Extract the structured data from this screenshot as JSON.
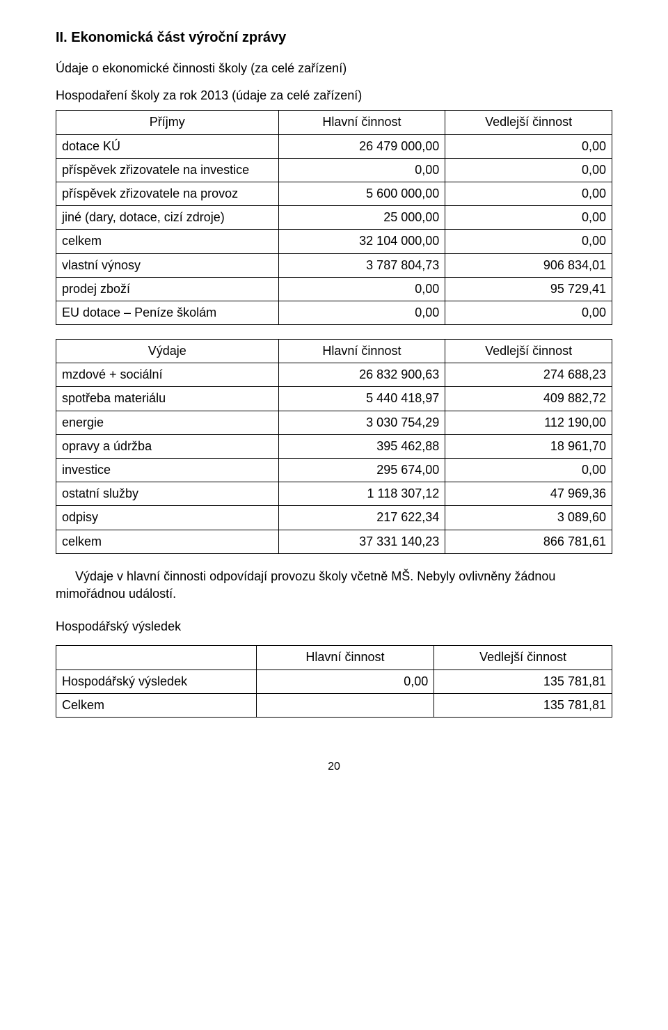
{
  "heading": "II. Ekonomická část výroční zprávy",
  "subtitle": "Údaje o ekonomické činnosti školy (za celé zařízení)",
  "section_label": "Hospodaření školy za rok 2013 (údaje za celé zařízení)",
  "income_table": {
    "type": "table",
    "columns": [
      "Příjmy",
      "Hlavní činnost",
      "Vedlejší činnost"
    ],
    "rows": [
      {
        "label": "dotace KÚ",
        "c1": "26 479 000,00",
        "c2": "0,00"
      },
      {
        "label": "příspěvek zřizovatele na investice",
        "c1": "0,00",
        "c2": "0,00"
      },
      {
        "label": "příspěvek zřizovatele na provoz",
        "c1": "5 600 000,00",
        "c2": "0,00"
      },
      {
        "label": "jiné (dary, dotace, cizí zdroje)",
        "c1": "25 000,00",
        "c2": "0,00"
      },
      {
        "label": "celkem",
        "c1": "32 104 000,00",
        "c2": "0,00"
      },
      {
        "label": "vlastní výnosy",
        "c1": "3 787 804,73",
        "c2": "906 834,01"
      },
      {
        "label": "prodej zboží",
        "c1": "0,00",
        "c2": "95 729,41"
      },
      {
        "label": "EU dotace – Peníze školám",
        "c1": "0,00",
        "c2": "0,00"
      }
    ]
  },
  "expense_table": {
    "type": "table",
    "columns": [
      "Výdaje",
      "Hlavní činnost",
      "Vedlejší činnost"
    ],
    "rows": [
      {
        "label": "mzdové + sociální",
        "c1": "26 832 900,63",
        "c2": "274 688,23"
      },
      {
        "label": "spotřeba materiálu",
        "c1": "5 440 418,97",
        "c2": "409 882,72"
      },
      {
        "label": "energie",
        "c1": "3 030 754,29",
        "c2": "112 190,00"
      },
      {
        "label": "opravy a údržba",
        "c1": "395 462,88",
        "c2": "18 961,70"
      },
      {
        "label": "investice",
        "c1": "295 674,00",
        "c2": "0,00"
      },
      {
        "label": "ostatní služby",
        "c1": "1 118 307,12",
        "c2": "47 969,36"
      },
      {
        "label": "odpisy",
        "c1": "217 622,34",
        "c2": "3 089,60"
      },
      {
        "label": "celkem",
        "c1": "37 331 140,23",
        "c2": "866 781,61"
      }
    ]
  },
  "note_text": "Výdaje v hlavní činnosti odpovídají provozu školy včetně MŠ. Nebyly ovlivněny žádnou mimořádnou událostí.",
  "result_label": "Hospodářský výsledek",
  "result_table": {
    "type": "table",
    "columns": [
      "",
      "Hlavní činnost",
      "Vedlejší činnost"
    ],
    "rows": [
      {
        "label": "Hospodářský výsledek",
        "c1": "0,00",
        "c2": "135 781,81"
      },
      {
        "label": "Celkem",
        "c1": "",
        "c2": "135 781,81"
      }
    ]
  },
  "page_number": "20",
  "colors": {
    "text": "#000000",
    "background": "#ffffff",
    "border": "#000000"
  },
  "fonts": {
    "body_size_pt": 14,
    "heading_size_pt": 15,
    "family": "Segoe UI / Tahoma"
  }
}
